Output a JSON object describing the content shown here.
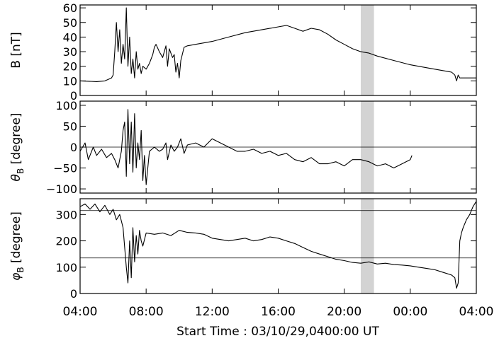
{
  "chart_data": {
    "type": "line",
    "xlabel": "Start Time : 03/10/29,0400:00 UT",
    "x_ticks": [
      "04:00",
      "08:00",
      "12:00",
      "16:00",
      "20:00",
      "00:00",
      "04:00"
    ],
    "x_range_hours": [
      0,
      24
    ],
    "shaded_interval_hours": [
      17.0,
      17.8
    ],
    "panels": [
      {
        "id": "B",
        "ylabel": "B [nT]",
        "ylim": [
          0,
          62
        ],
        "yticks": [
          "0",
          "10",
          "20",
          "30",
          "40",
          "50",
          "60"
        ],
        "ytick_values": [
          0,
          10,
          20,
          30,
          40,
          50,
          60
        ],
        "ref_lines": [],
        "series": [
          {
            "points": [
              [
                0,
                10
              ],
              [
                1,
                9.5
              ],
              [
                1.5,
                10
              ],
              [
                1.9,
                12
              ],
              [
                2.0,
                14
              ],
              [
                2.1,
                30
              ],
              [
                2.2,
                50
              ],
              [
                2.3,
                30
              ],
              [
                2.4,
                45
              ],
              [
                2.5,
                22
              ],
              [
                2.6,
                35
              ],
              [
                2.7,
                25
              ],
              [
                2.8,
                60
              ],
              [
                2.9,
                20
              ],
              [
                3.0,
                40
              ],
              [
                3.1,
                15
              ],
              [
                3.2,
                25
              ],
              [
                3.3,
                12
              ],
              [
                3.4,
                30
              ],
              [
                3.5,
                18
              ],
              [
                3.6,
                22
              ],
              [
                3.7,
                15
              ],
              [
                3.8,
                20
              ],
              [
                4.0,
                18
              ],
              [
                4.2,
                22
              ],
              [
                4.4,
                28
              ],
              [
                4.5,
                33
              ],
              [
                4.6,
                35
              ],
              [
                4.8,
                30
              ],
              [
                5.0,
                26
              ],
              [
                5.2,
                34
              ],
              [
                5.3,
                20
              ],
              [
                5.4,
                32
              ],
              [
                5.6,
                26
              ],
              [
                5.7,
                28
              ],
              [
                5.8,
                16
              ],
              [
                5.9,
                22
              ],
              [
                6.0,
                12
              ],
              [
                6.1,
                24
              ],
              [
                6.3,
                33
              ],
              [
                6.5,
                34
              ],
              [
                7,
                35
              ],
              [
                8,
                37
              ],
              [
                9,
                40
              ],
              [
                10,
                43
              ],
              [
                11,
                45
              ],
              [
                12,
                47
              ],
              [
                12.5,
                48
              ],
              [
                13,
                46
              ],
              [
                13.5,
                44
              ],
              [
                14,
                46
              ],
              [
                14.5,
                45
              ],
              [
                15,
                42
              ],
              [
                15.5,
                38
              ],
              [
                16,
                35
              ],
              [
                16.5,
                32
              ],
              [
                17,
                30
              ],
              [
                17.5,
                29
              ],
              [
                18,
                27
              ],
              [
                19,
                24
              ],
              [
                20,
                21
              ],
              [
                21,
                19
              ],
              [
                22,
                17
              ],
              [
                22.5,
                16
              ],
              [
                22.7,
                14
              ],
              [
                22.8,
                10
              ],
              [
                22.9,
                14
              ],
              [
                23,
                12
              ],
              [
                23.5,
                12
              ],
              [
                24,
                12
              ]
            ]
          }
        ]
      },
      {
        "id": "theta",
        "ylabel": "θ",
        "ylabel_sub": "B",
        "ylabel_unit": "[degree]",
        "ylim": [
          -110,
          110
        ],
        "yticks": [
          "100",
          "50",
          "0",
          "−50",
          "−100"
        ],
        "ytick_values": [
          100,
          50,
          0,
          -50,
          -100
        ],
        "ref_lines": [
          0
        ],
        "series": [
          {
            "points": [
              [
                0,
                -10
              ],
              [
                0.3,
                10
              ],
              [
                0.5,
                -30
              ],
              [
                0.8,
                0
              ],
              [
                1,
                -20
              ],
              [
                1.3,
                -5
              ],
              [
                1.6,
                -25
              ],
              [
                1.9,
                -15
              ],
              [
                2.1,
                -30
              ],
              [
                2.3,
                -50
              ],
              [
                2.5,
                -10
              ],
              [
                2.6,
                40
              ],
              [
                2.7,
                60
              ],
              [
                2.8,
                -70
              ],
              [
                2.9,
                90
              ],
              [
                3.0,
                -40
              ],
              [
                3.1,
                60
              ],
              [
                3.2,
                -60
              ],
              [
                3.3,
                80
              ],
              [
                3.4,
                -50
              ],
              [
                3.5,
                10
              ],
              [
                3.6,
                -30
              ],
              [
                3.7,
                40
              ],
              [
                3.8,
                -80
              ],
              [
                3.9,
                -20
              ],
              [
                4.0,
                -90
              ],
              [
                4.2,
                -10
              ],
              [
                4.5,
                0
              ],
              [
                4.8,
                -10
              ],
              [
                5.0,
                -5
              ],
              [
                5.2,
                10
              ],
              [
                5.3,
                -30
              ],
              [
                5.5,
                5
              ],
              [
                5.7,
                -10
              ],
              [
                5.9,
                0
              ],
              [
                6.1,
                20
              ],
              [
                6.3,
                -15
              ],
              [
                6.5,
                5
              ],
              [
                7,
                10
              ],
              [
                7.5,
                0
              ],
              [
                8,
                20
              ],
              [
                8.5,
                10
              ],
              [
                9,
                0
              ],
              [
                9.5,
                -10
              ],
              [
                10,
                -10
              ],
              [
                10.5,
                -5
              ],
              [
                11,
                -15
              ],
              [
                11.5,
                -10
              ],
              [
                12,
                -20
              ],
              [
                12.5,
                -15
              ],
              [
                13,
                -30
              ],
              [
                13.5,
                -35
              ],
              [
                14,
                -25
              ],
              [
                14.5,
                -40
              ],
              [
                15,
                -40
              ],
              [
                15.5,
                -35
              ],
              [
                16,
                -45
              ],
              [
                16.5,
                -30
              ],
              [
                17,
                -30
              ],
              [
                17.5,
                -35
              ],
              [
                18,
                -45
              ],
              [
                18.5,
                -40
              ],
              [
                19,
                -50
              ],
              [
                19.5,
                -40
              ],
              [
                20,
                -30
              ],
              [
                20.1,
                -20
              ]
            ]
          }
        ]
      },
      {
        "id": "phi",
        "ylabel": "φ",
        "ylabel_sub": "B",
        "ylabel_unit": "[degree]",
        "ylim": [
          0,
          360
        ],
        "yticks": [
          "300",
          "200",
          "100",
          "0"
        ],
        "ytick_values": [
          300,
          200,
          100,
          0
        ],
        "ref_lines": [
          315,
          135
        ],
        "series": [
          {
            "points": [
              [
                0,
                330
              ],
              [
                0.3,
                340
              ],
              [
                0.6,
                320
              ],
              [
                0.9,
                340
              ],
              [
                1.2,
                310
              ],
              [
                1.5,
                335
              ],
              [
                1.8,
                300
              ],
              [
                2.0,
                320
              ],
              [
                2.2,
                280
              ],
              [
                2.4,
                300
              ],
              [
                2.6,
                250
              ],
              [
                2.8,
                100
              ],
              [
                2.9,
                40
              ],
              [
                3.0,
                200
              ],
              [
                3.1,
                60
              ],
              [
                3.2,
                250
              ],
              [
                3.3,
                120
              ],
              [
                3.4,
                220
              ],
              [
                3.5,
                150
              ],
              [
                3.6,
                240
              ],
              [
                3.7,
                200
              ],
              [
                3.8,
                180
              ],
              [
                4.0,
                230
              ],
              [
                4.5,
                225
              ],
              [
                5,
                230
              ],
              [
                5.5,
                220
              ],
              [
                6,
                240
              ],
              [
                6.5,
                232
              ],
              [
                7,
                230
              ],
              [
                7.5,
                225
              ],
              [
                8,
                210
              ],
              [
                8.5,
                205
              ],
              [
                9,
                200
              ],
              [
                9.5,
                205
              ],
              [
                10,
                210
              ],
              [
                10.5,
                200
              ],
              [
                11,
                205
              ],
              [
                11.5,
                215
              ],
              [
                12,
                210
              ],
              [
                12.5,
                200
              ],
              [
                13,
                190
              ],
              [
                13.5,
                175
              ],
              [
                14,
                160
              ],
              [
                14.5,
                150
              ],
              [
                15,
                140
              ],
              [
                15.5,
                130
              ],
              [
                16,
                125
              ],
              [
                16.5,
                118
              ],
              [
                17,
                115
              ],
              [
                17.5,
                120
              ],
              [
                18,
                112
              ],
              [
                18.5,
                115
              ],
              [
                19,
                110
              ],
              [
                19.5,
                108
              ],
              [
                20,
                105
              ],
              [
                20.5,
                100
              ],
              [
                21,
                95
              ],
              [
                21.5,
                90
              ],
              [
                22,
                80
              ],
              [
                22.5,
                70
              ],
              [
                22.7,
                60
              ],
              [
                22.8,
                20
              ],
              [
                22.9,
                40
              ],
              [
                23.0,
                200
              ],
              [
                23.1,
                230
              ],
              [
                23.2,
                250
              ],
              [
                23.4,
                280
              ],
              [
                23.6,
                300
              ],
              [
                23.8,
                330
              ],
              [
                24,
                350
              ]
            ]
          }
        ]
      }
    ]
  }
}
